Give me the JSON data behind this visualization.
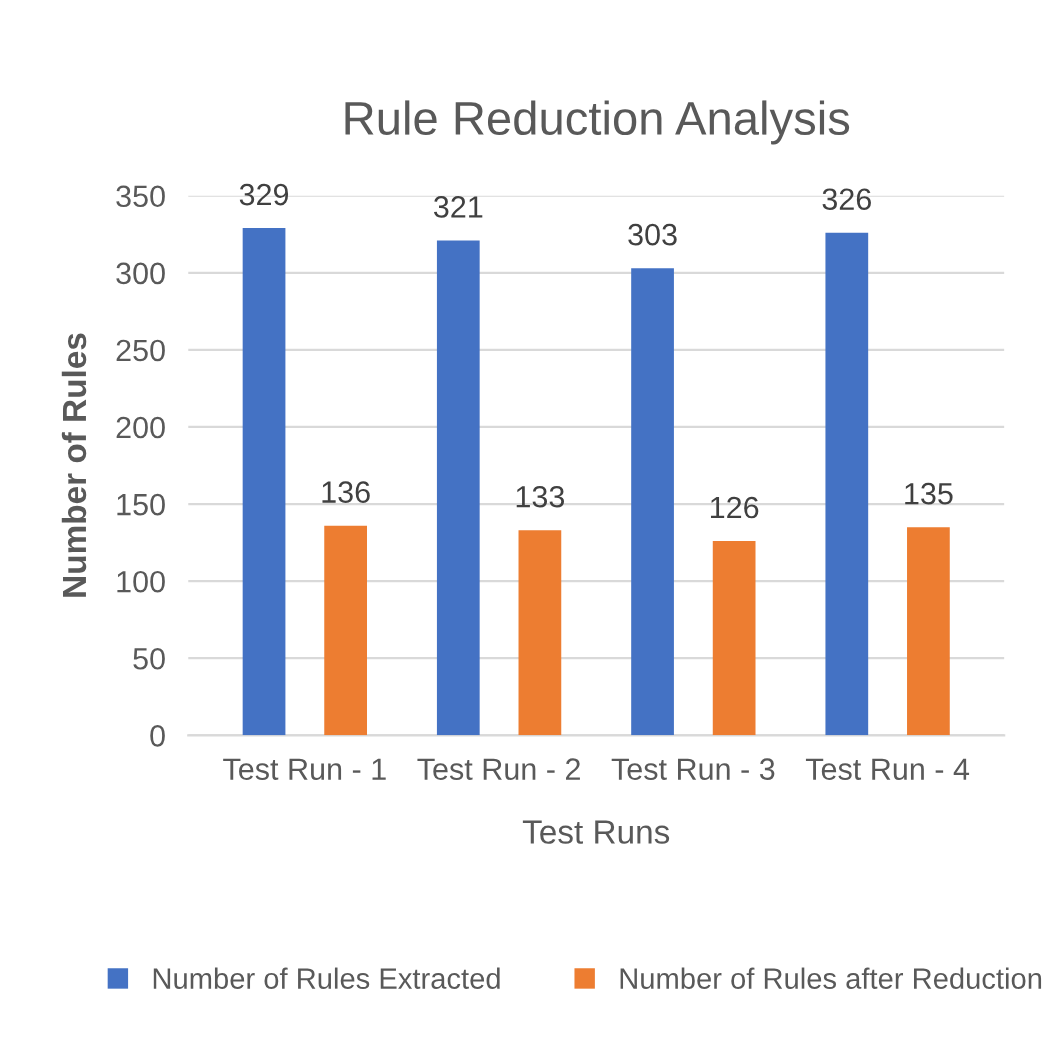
{
  "chart_data": {
    "type": "bar",
    "title": "Rule Reduction Analysis",
    "xlabel": "Test Runs",
    "ylabel": "Number of Rules",
    "categories": [
      "Test Run - 1",
      "Test Run - 2",
      "Test Run - 3",
      "Test Run - 4"
    ],
    "series": [
      {
        "name": "Number of Rules Extracted",
        "color": "#4472c4",
        "values": [
          329,
          321,
          303,
          326
        ]
      },
      {
        "name": "Number of Rules after Reduction",
        "color": "#ed7d31",
        "values": [
          136,
          133,
          126,
          135
        ]
      }
    ],
    "ylim": [
      0,
      350
    ],
    "yticks": [
      0,
      50,
      100,
      150,
      200,
      250,
      300,
      350
    ],
    "grid": "y",
    "legend": "bottom",
    "data_labels": true
  }
}
